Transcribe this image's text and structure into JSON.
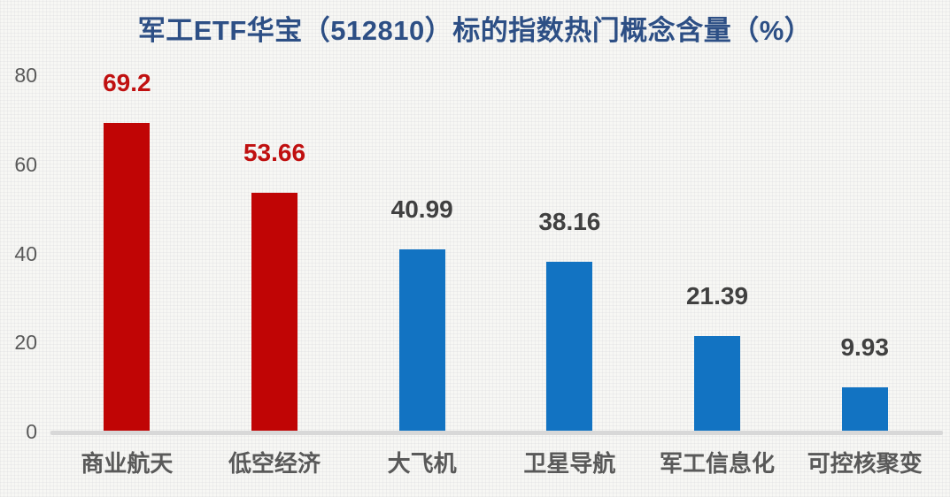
{
  "page": {
    "background_color": "#f7f7f4"
  },
  "colors": {
    "title": "#2d4f85",
    "red_bar": "#c00505",
    "blue_bar": "#1273c2",
    "red_value_label": "#c01010",
    "dark_value_label": "#404040",
    "axis_tick": "#595959",
    "category_label": "#595959",
    "axis_line": "#d8d8d8"
  },
  "chart_data": {
    "type": "bar",
    "title": "军工ETF华宝（512810）标的指数热门概念含量（%）",
    "xlabel": "",
    "ylabel": "",
    "categories": [
      "商业航天",
      "低空经济",
      "大飞机",
      "卫星导航",
      "军工信息化",
      "可控核聚变"
    ],
    "values": [
      69.2,
      53.66,
      40.99,
      38.16,
      21.39,
      9.93
    ],
    "value_labels": [
      "69.2",
      "53.66",
      "40.99",
      "38.16",
      "21.39",
      "9.93"
    ],
    "bar_colors": [
      "#c00505",
      "#c00505",
      "#1273c2",
      "#1273c2",
      "#1273c2",
      "#1273c2"
    ],
    "value_label_colors": [
      "#c01010",
      "#c01010",
      "#404040",
      "#404040",
      "#404040",
      "#404040"
    ],
    "ylim": [
      0,
      80
    ],
    "yticks": [
      0,
      20,
      40,
      60,
      80
    ],
    "grid": false,
    "legend": "none"
  }
}
